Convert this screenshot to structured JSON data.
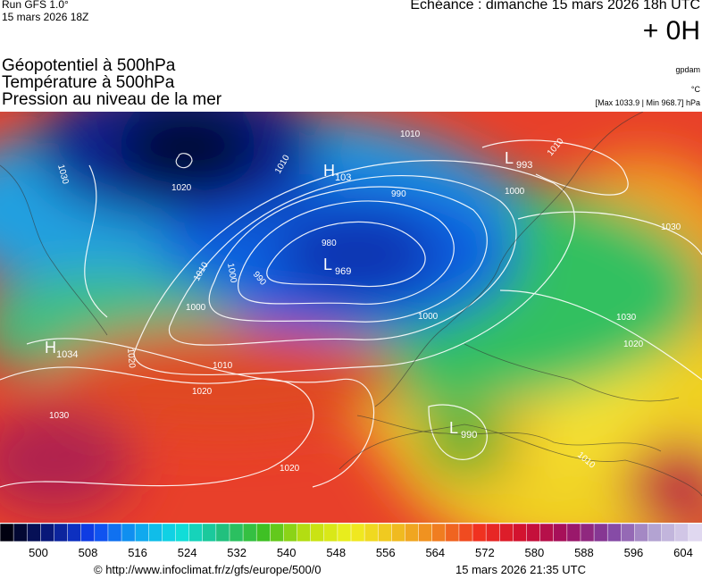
{
  "header": {
    "run": "Run GFS 1.0°",
    "run_date": "15 mars 2026 18Z",
    "echeance": "Echéance : dimanche 15 mars 2026 18h UTC",
    "offset": "+ 0H"
  },
  "titles": [
    "Géopotentiel à 500hPa",
    "Température à 500hPa",
    "Pression au niveau de la mer"
  ],
  "units": {
    "geopotential": "gpdam",
    "temperature": "°C",
    "pressure": "[Max 1033.9 | Min 968.7] hPa"
  },
  "map": {
    "centers": [
      {
        "letter": "H",
        "value": "1034"
      },
      {
        "letter": "L",
        "value": "969"
      },
      {
        "letter": "L",
        "value": "993"
      },
      {
        "letter": "H",
        "value": "103"
      },
      {
        "letter": "L",
        "value": "990"
      }
    ],
    "isobar_labels": [
      "1020",
      "1030",
      "1010",
      "990",
      "980",
      "1000",
      "990",
      "1010",
      "1000",
      "1010",
      "1020",
      "1030",
      "1020",
      "1000",
      "1010",
      "1000",
      "1010",
      "1030",
      "1020",
      "1030",
      "1010",
      "1020"
    ]
  },
  "colorbar": {
    "ticks": [
      "500",
      "508",
      "516",
      "524",
      "532",
      "540",
      "548",
      "556",
      "564",
      "572",
      "580",
      "588",
      "596",
      "604"
    ]
  },
  "footer": {
    "url": "© http://www.infoclimat.fr/z/gfs/europe/500/0",
    "timestamp": "15 mars 2026 21:35 UTC"
  }
}
